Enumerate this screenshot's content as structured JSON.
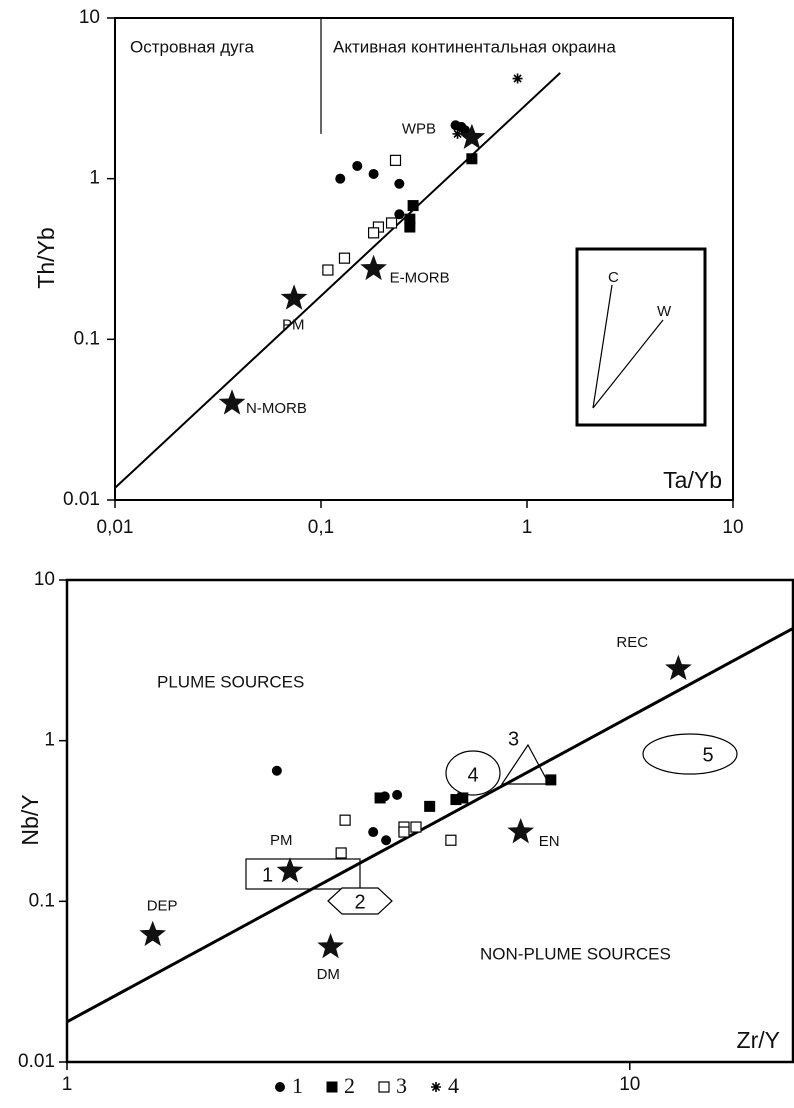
{
  "chart_data": [
    {
      "type": "scatter",
      "xscale": "log",
      "yscale": "log",
      "xlim": [
        0.01,
        10
      ],
      "ylim": [
        0.01,
        10
      ],
      "xticks": [
        {
          "value": 0.01,
          "label": "0,01"
        },
        {
          "value": 0.1,
          "label": "0,1"
        },
        1,
        10
      ],
      "yticks": [
        0.01,
        0.1,
        1,
        10
      ],
      "x_label": "Ta/Yb",
      "y_label": "Th/Yb",
      "region_labels": [
        "Островная дуга",
        "Активная континентальная окраина"
      ],
      "divider": {
        "x": 0.1,
        "y": [
          1.9,
          10
        ]
      },
      "trend_line": {
        "x": [
          0.01,
          1.45
        ],
        "y": [
          0.0119,
          4.55
        ]
      },
      "inset_labels": [
        "C",
        "W"
      ],
      "series": [
        {
          "marker": "circle",
          "color": "#000000",
          "x": [
            0.124,
            0.15,
            0.18,
            0.24,
            0.24,
            0.45,
            0.48,
            0.5
          ],
          "y": [
            1.0,
            1.2,
            1.07,
            0.93,
            0.6,
            2.15,
            2.1,
            2.0
          ]
        },
        {
          "marker": "square",
          "color": "#000000",
          "x": [
            0.28,
            0.27,
            0.27,
            0.54
          ],
          "y": [
            0.68,
            0.56,
            0.5,
            1.33
          ]
        },
        {
          "marker": "open-square",
          "color": "#000000",
          "x": [
            0.23,
            0.22,
            0.19,
            0.18,
            0.13,
            0.108
          ],
          "y": [
            1.3,
            0.53,
            0.5,
            0.46,
            0.32,
            0.27
          ]
        },
        {
          "marker": "asterisk",
          "color": "#000000",
          "x": [
            0.9,
            0.46
          ],
          "y": [
            4.2,
            1.9
          ]
        }
      ],
      "reference_points": [
        {
          "label": "WPB",
          "x": 0.54,
          "y": 1.8
        },
        {
          "label": "E-MORB",
          "x": 0.18,
          "y": 0.275
        },
        {
          "label": "PM",
          "x": 0.074,
          "y": 0.18
        },
        {
          "label": "N-MORB",
          "x": 0.037,
          "y": 0.04
        }
      ]
    },
    {
      "type": "scatter",
      "xscale": "log",
      "yscale": "log",
      "xlim": [
        1,
        19.5
      ],
      "ylim": [
        0.01,
        10
      ],
      "xticks": [
        1,
        10
      ],
      "yticks": [
        0.01,
        0.1,
        1,
        10
      ],
      "x_label": "Zr/Y",
      "y_label": "Nb/Y",
      "region_labels": [
        "PLUME SOURCES",
        "NON-PLUME SOURCES"
      ],
      "trend_line": {
        "x": [
          1,
          19.5
        ],
        "y": [
          0.0178,
          5.0
        ]
      },
      "fields": [
        "1",
        "2",
        "3",
        "4",
        "5"
      ],
      "series": [
        {
          "name": "1",
          "marker": "circle",
          "color": "#000000",
          "x": [
            2.36,
            3.5,
            3.69,
            3.67,
            3.86
          ],
          "y": [
            0.65,
            0.27,
            0.24,
            0.45,
            0.46
          ]
        },
        {
          "name": "2",
          "marker": "square",
          "color": "#000000",
          "x": [
            3.6,
            4.41,
            4.91,
            5.05,
            7.24
          ],
          "y": [
            0.44,
            0.39,
            0.43,
            0.44,
            0.57
          ]
        },
        {
          "name": "3",
          "marker": "open-square",
          "color": "#000000",
          "x": [
            3.12,
            3.07,
            3.97,
            3.97,
            4.17,
            4.81
          ],
          "y": [
            0.32,
            0.2,
            0.29,
            0.27,
            0.29,
            0.24
          ]
        },
        {
          "name": "4",
          "marker": "asterisk",
          "color": "#000000",
          "x": [],
          "y": []
        }
      ],
      "reference_points": [
        {
          "label": "REC",
          "x": 12.2,
          "y": 2.8
        },
        {
          "label": "EN",
          "x": 6.4,
          "y": 0.27
        },
        {
          "label": "PM",
          "x": 2.49,
          "y": 0.154
        },
        {
          "label": "DEP",
          "x": 1.42,
          "y": 0.062
        },
        {
          "label": "DM",
          "x": 2.94,
          "y": 0.052
        }
      ]
    }
  ]
}
